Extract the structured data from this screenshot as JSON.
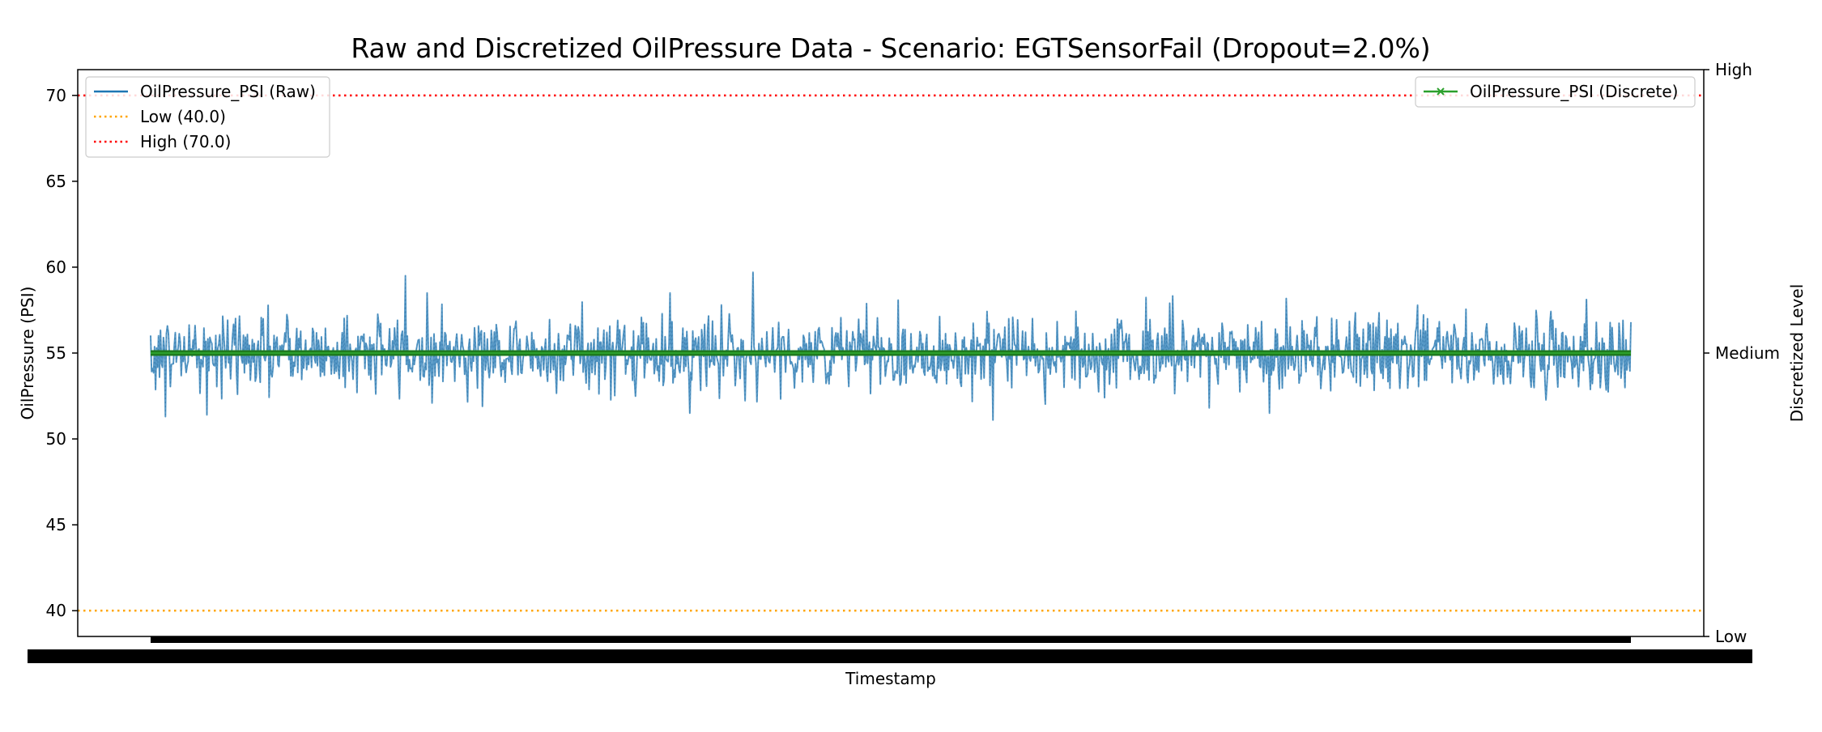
{
  "chart_data": {
    "type": "line",
    "title": "Raw and Discretized OilPressure Data - Scenario: EGTSensorFail (Dropout=2.0%)",
    "xlabel": "Timestamp",
    "ylabel": "OilPressure (PSI)",
    "y2label": "Discretized Level",
    "ylim": [
      38.5,
      71.5
    ],
    "y_ticks": [
      "40",
      "45",
      "50",
      "55",
      "60",
      "65",
      "70"
    ],
    "y2_ticks": [
      "Low",
      "Medium",
      "High"
    ],
    "grid": false,
    "x_ticks_note": "dense overlapping timestamp tick labels rendered as solid black band",
    "series": [
      {
        "name": "OilPressure_PSI (Raw)",
        "color": "#1f77b4",
        "axis": "left",
        "n_points": 1500,
        "mean": 55.0,
        "min": 51.1,
        "max": 59.7,
        "notable_points": [
          {
            "index": 15,
            "value": 51.3
          },
          {
            "index": 57,
            "value": 51.4
          },
          {
            "index": 258,
            "value": 59.5
          },
          {
            "index": 526,
            "value": 58.5
          },
          {
            "index": 546,
            "value": 51.5
          },
          {
            "index": 610,
            "value": 59.7
          },
          {
            "index": 853,
            "value": 51.1
          }
        ]
      },
      {
        "name": "OilPressure_PSI (Discrete)",
        "color": "#2ca02c",
        "axis": "right",
        "marker": "x",
        "value": "Medium",
        "n_points": 1500
      }
    ],
    "reference_lines": [
      {
        "name": "Low (40.0)",
        "value": 40.0,
        "color": "#ffa500",
        "style": "dotted"
      },
      {
        "name": "High (70.0)",
        "value": 70.0,
        "color": "#ff0000",
        "style": "dotted"
      }
    ],
    "legend_left": [
      "OilPressure_PSI (Raw)",
      "Low (40.0)",
      "High (70.0)"
    ],
    "legend_right": [
      "OilPressure_PSI (Discrete)"
    ],
    "legend_placement": [
      "top-left",
      "top-right"
    ]
  }
}
